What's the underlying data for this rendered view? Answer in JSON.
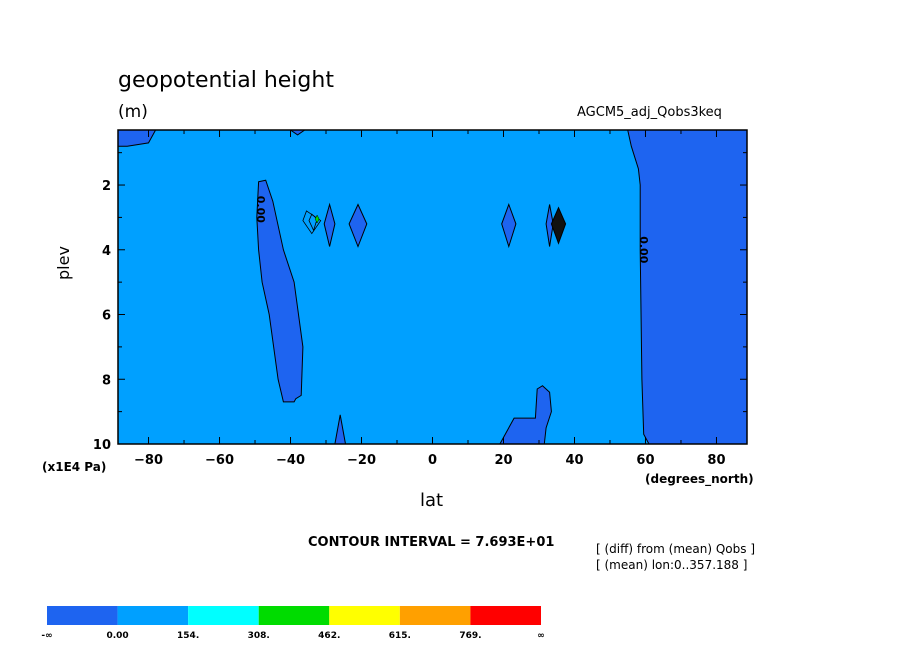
{
  "header": {
    "title": "geopotential height",
    "units": "(m)",
    "dataset": "AGCM5_adj_Qobs3keq"
  },
  "axes": {
    "y_label": "plev",
    "y_unit": "(x1E4 Pa)",
    "x_label": "lat",
    "x_unit": "(degrees_north)"
  },
  "footer": {
    "contour_interval": "CONTOUR INTERVAL = 7.693E+01",
    "info_line1": "[ (diff) from (mean) Qobs ]",
    "info_line2": "[ (mean) lon:0..357.188 ]"
  },
  "colorbar": {
    "colors": [
      "#1e64f0",
      "#00a0ff",
      "#00ffff",
      "#00dc00",
      "#ffff00",
      "#ffa000",
      "#ff0000"
    ],
    "labels": [
      "-∞",
      "0.00",
      "154.",
      "308.",
      "462.",
      "615.",
      "769.",
      "∞"
    ]
  },
  "chart_data": {
    "type": "contour",
    "title": "geopotential height",
    "units": "(m)",
    "xlabel": "lat",
    "ylabel": "plev",
    "x_unit": "(degrees_north)",
    "y_unit": "(x1E4 Pa)",
    "xlim": [
      -88.6,
      88.6
    ],
    "ylim": [
      10,
      0.3
    ],
    "y_inverted": true,
    "x_ticks": [
      -80,
      -60,
      -40,
      -20,
      0,
      20,
      40,
      60,
      80
    ],
    "x_tick_labels": [
      "−80",
      "−60",
      "−40",
      "−20",
      "0",
      "20",
      "40",
      "60",
      "80"
    ],
    "y_ticks": [
      2,
      4,
      6,
      8,
      10
    ],
    "y_tick_labels": [
      "2",
      "4",
      "6",
      "8",
      "10"
    ],
    "contour_interval": 76.93,
    "contour_labels": [
      "0.00",
      "0.00"
    ],
    "background_color": "#00a0ff",
    "negative_color": "#1e64f0",
    "regions": [
      {
        "name": "cap-nw",
        "color": "#1e64f0",
        "pts": [
          [
            -88.6,
            0.3
          ],
          [
            -78,
            0.3
          ],
          [
            -80,
            0.7
          ],
          [
            -86,
            0.8
          ],
          [
            -88.6,
            0.8
          ]
        ]
      },
      {
        "name": "blob-top",
        "color": "#1e64f0",
        "pts": [
          [
            -40,
            0.3
          ],
          [
            -36,
            0.3
          ],
          [
            -38,
            0.45
          ]
        ]
      },
      {
        "name": "east-band",
        "color": "#1e64f0",
        "pts": [
          [
            55,
            0.3
          ],
          [
            88.6,
            0.3
          ],
          [
            88.6,
            10
          ],
          [
            61,
            10
          ],
          [
            59.5,
            9.7
          ],
          [
            59,
            8
          ],
          [
            58.5,
            4
          ],
          [
            58.5,
            2
          ],
          [
            58,
            1.5
          ],
          [
            56,
            0.8
          ]
        ]
      },
      {
        "name": "band-south",
        "color": "#1e64f0",
        "pts": [
          [
            -49,
            1.9
          ],
          [
            -47,
            1.85
          ],
          [
            -45,
            2.5
          ],
          [
            -42,
            4
          ],
          [
            -39,
            5
          ],
          [
            -36.5,
            7
          ],
          [
            -37,
            8.5
          ],
          [
            -38.5,
            8.6
          ],
          [
            -39,
            8.7
          ],
          [
            -42,
            8.7
          ],
          [
            -43.5,
            8
          ],
          [
            -46,
            6
          ],
          [
            -48,
            5
          ],
          [
            -49,
            4
          ],
          [
            -49.5,
            3
          ]
        ]
      },
      {
        "name": "spike-a",
        "color": "#1e64f0",
        "pts": [
          [
            -29,
            2.6
          ],
          [
            -27.5,
            3.2
          ],
          [
            -29,
            3.9
          ],
          [
            -30.5,
            3.2
          ]
        ]
      },
      {
        "name": "spike-b",
        "color": "#1e64f0",
        "pts": [
          [
            -21,
            2.6
          ],
          [
            -18.5,
            3.2
          ],
          [
            -21,
            3.9
          ],
          [
            -23.5,
            3.2
          ]
        ]
      },
      {
        "name": "spike-c",
        "color": "#1e64f0",
        "pts": [
          [
            21.5,
            2.6
          ],
          [
            23.5,
            3.2
          ],
          [
            21.5,
            3.9
          ],
          [
            19.5,
            3.2
          ]
        ]
      },
      {
        "name": "spike-d",
        "color": "#1e64f0",
        "pts": [
          [
            33,
            2.6
          ],
          [
            34,
            3.2
          ],
          [
            33,
            3.9
          ],
          [
            32,
            3.2
          ]
        ]
      },
      {
        "name": "spike-e",
        "color": "#111111",
        "pts": [
          [
            35.5,
            2.7
          ],
          [
            37.5,
            3.2
          ],
          [
            35.5,
            3.8
          ],
          [
            33.5,
            3.2
          ]
        ]
      },
      {
        "name": "foot-south",
        "color": "#1e64f0",
        "pts": [
          [
            -26,
            9.1
          ],
          [
            -24.5,
            10
          ],
          [
            -27.5,
            10
          ]
        ]
      },
      {
        "name": "foot-north",
        "color": "#1e64f0",
        "pts": [
          [
            19,
            10
          ],
          [
            23,
            9.2
          ],
          [
            29,
            9.2
          ],
          [
            29.5,
            8.3
          ],
          [
            31,
            8.2
          ],
          [
            33,
            8.4
          ],
          [
            33.5,
            9
          ],
          [
            32,
            9.5
          ],
          [
            31.5,
            10
          ]
        ]
      }
    ],
    "isolines": [
      {
        "name": "ring-outer",
        "pts": [
          [
            -35.5,
            2.8
          ],
          [
            -31.5,
            3.1
          ],
          [
            -34,
            3.5
          ],
          [
            -36.5,
            3.1
          ]
        ]
      },
      {
        "name": "ring-inner",
        "pts": [
          [
            -34,
            2.9
          ],
          [
            -32.5,
            3.05
          ],
          [
            -33.5,
            3.4
          ],
          [
            -34.8,
            3.1
          ]
        ]
      }
    ],
    "markers": [
      {
        "name": "tiny-green-contour",
        "x": -32.5,
        "y": 3.05,
        "color": "#00dc00"
      }
    ]
  }
}
